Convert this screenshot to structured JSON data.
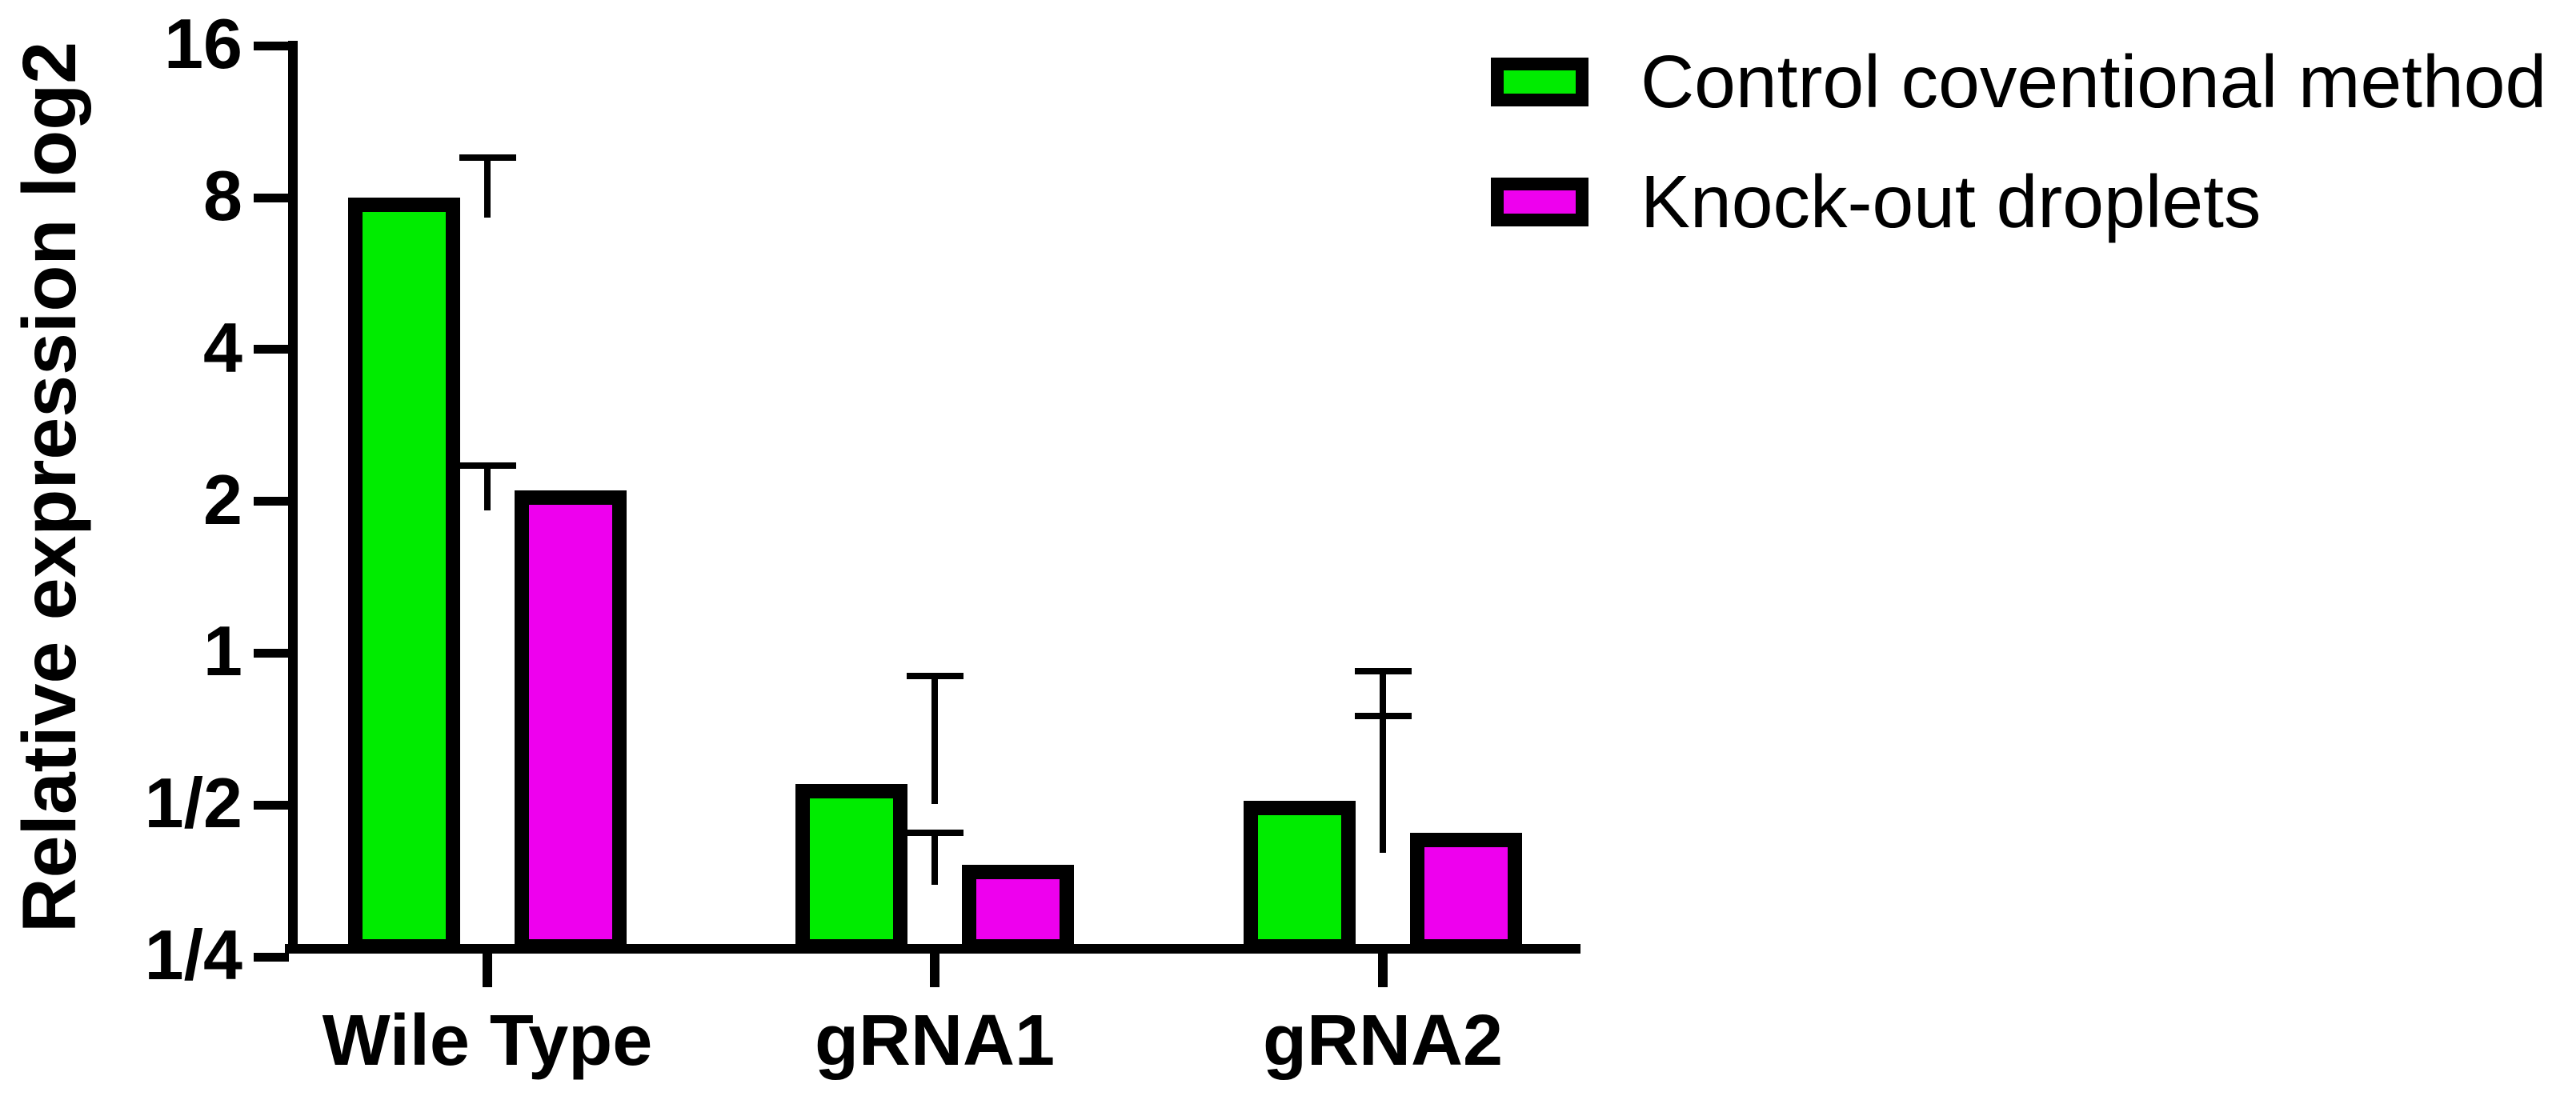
{
  "figure": {
    "background": "#ffffff",
    "axis_color": "#000000",
    "text_color": "#000000"
  },
  "chart_data": {
    "type": "bar",
    "scale": "log2",
    "title": "",
    "xlabel": "",
    "ylabel": "Relative expression log2",
    "categories": [
      "Wile Type",
      "gRNA1",
      "gRNA2"
    ],
    "series": [
      {
        "name": "Control coventional method",
        "color": "#00ec00",
        "values": [
          8.0,
          0.55,
          0.51
        ],
        "error_top": [
          9.6,
          0.9,
          0.92
        ]
      },
      {
        "name": "Knock-out droplets",
        "color": "#ee00ee",
        "values": [
          2.1,
          0.38,
          0.44
        ],
        "error_top": [
          2.35,
          0.44,
          0.75
        ]
      }
    ],
    "yticks": [
      {
        "label": "16",
        "value": 16
      },
      {
        "label": "8",
        "value": 8
      },
      {
        "label": "4",
        "value": 4
      },
      {
        "label": "2",
        "value": 2
      },
      {
        "label": "1",
        "value": 1
      },
      {
        "label": "1/2",
        "value": 0.5
      },
      {
        "label": "1/4",
        "value": 0.25
      }
    ],
    "ylim": [
      0.25,
      16
    ],
    "grid": false,
    "legend_position": "top-right",
    "error_bars": "upper only, capped, black"
  }
}
